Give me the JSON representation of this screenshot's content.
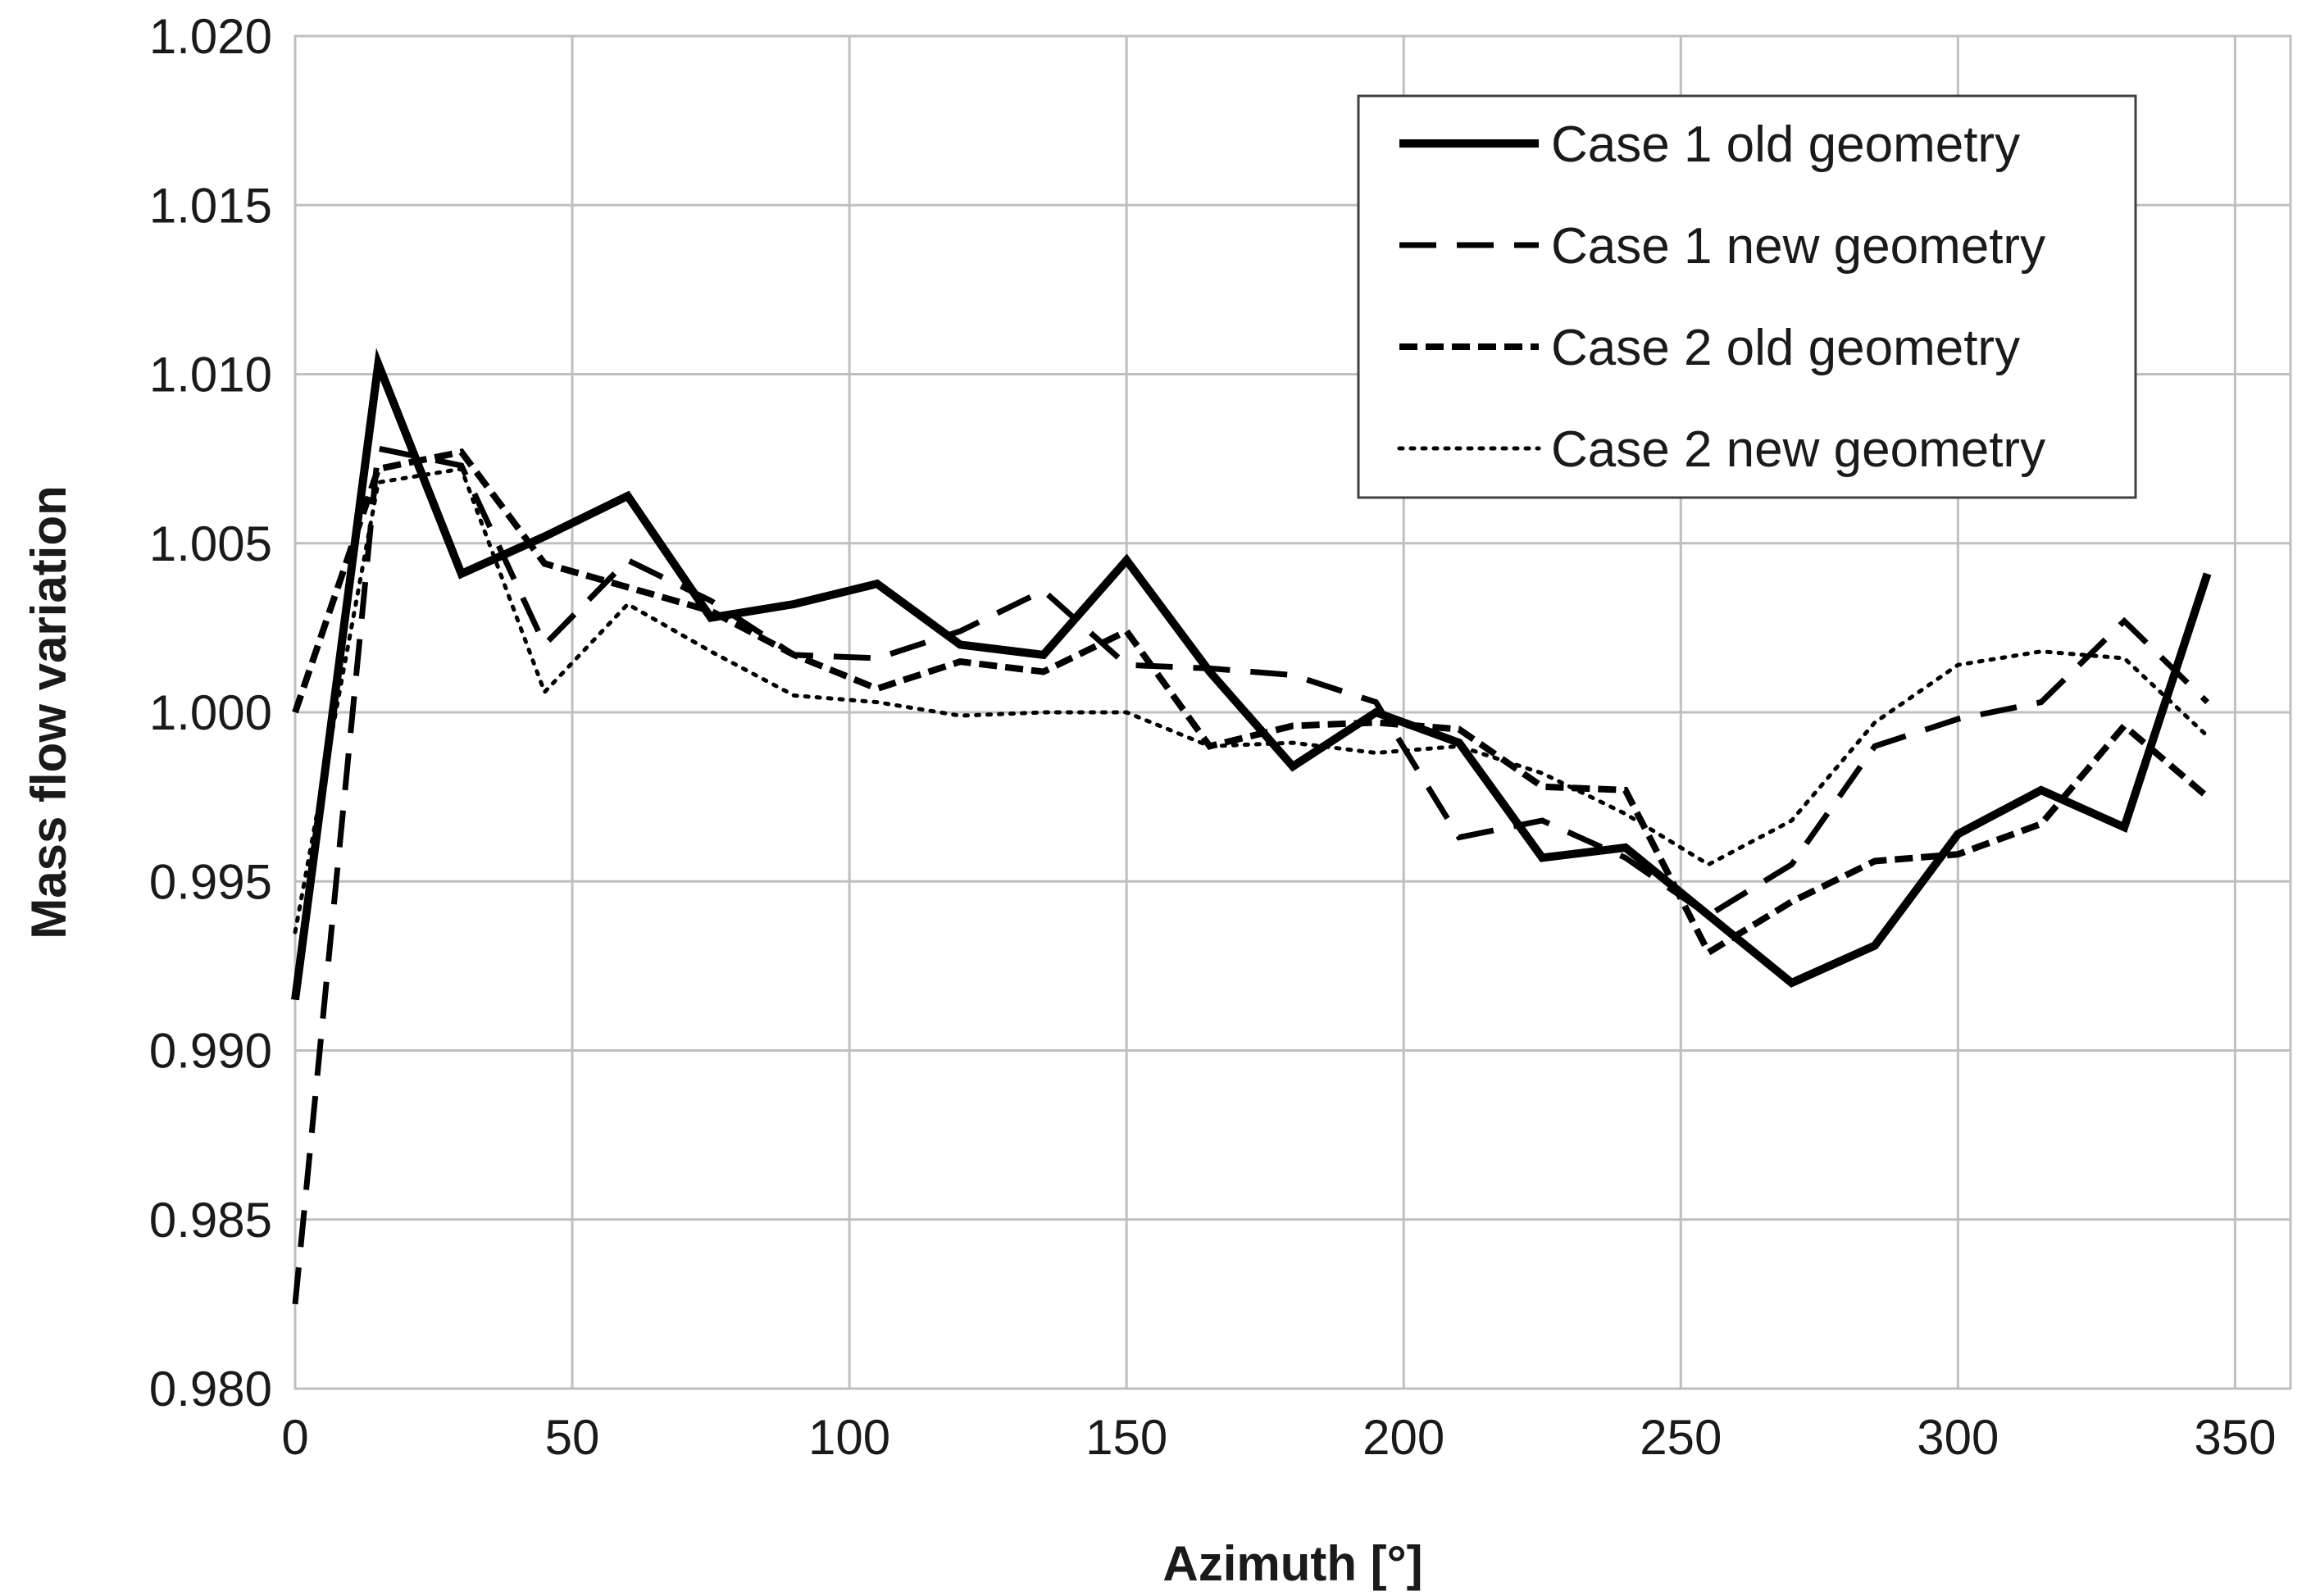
{
  "chart_data": {
    "type": "line",
    "title": "",
    "xlabel": "Azimuth [°]",
    "ylabel": "Mass flow variation",
    "xlim": [
      0,
      360
    ],
    "ylim": [
      0.98,
      1.02
    ],
    "xticks": [
      0,
      50,
      100,
      150,
      200,
      250,
      300,
      350
    ],
    "xtick_labels": [
      "0",
      "50",
      "100",
      "150",
      "200",
      "250",
      "300",
      "350"
    ],
    "yticks": [
      0.98,
      0.985,
      0.99,
      0.995,
      1.0,
      1.005,
      1.01,
      1.015,
      1.02
    ],
    "ytick_labels": [
      "0.980",
      "0.985",
      "0.990",
      "0.995",
      "1.000",
      "1.005",
      "1.010",
      "1.015",
      "1.020"
    ],
    "grid": true,
    "legend_position": "top-right",
    "x": [
      0,
      15,
      30,
      45,
      60,
      75,
      90,
      105,
      120,
      135,
      150,
      165,
      180,
      195,
      210,
      225,
      240,
      255,
      270,
      285,
      300,
      315,
      330,
      345
    ],
    "series": [
      {
        "name": "Case 1 old geometry",
        "style": "solid-thick",
        "values": [
          0.9915,
          1.0103,
          1.0041,
          1.0052,
          1.0064,
          1.0028,
          1.0032,
          1.0038,
          1.002,
          1.0017,
          1.0045,
          1.0012,
          0.9984,
          1.0,
          0.9991,
          0.9957,
          0.996,
          0.994,
          0.992,
          0.9931,
          0.9964,
          0.9977,
          0.9966,
          1.0041
        ]
      },
      {
        "name": "Case 1 new geometry",
        "style": "long-dash",
        "values": [
          0.9825,
          1.0078,
          1.0073,
          1.002,
          1.0045,
          1.0033,
          1.0017,
          1.0016,
          1.0024,
          1.0036,
          1.0014,
          1.0013,
          1.0011,
          1.0003,
          0.9963,
          0.9968,
          0.9957,
          0.994,
          0.9955,
          0.999,
          0.9998,
          1.0003,
          1.0027,
          1.0003
        ]
      },
      {
        "name": "Case 2 old geometry",
        "style": "short-dash",
        "values": [
          1.0,
          1.0072,
          1.0077,
          1.0044,
          1.0037,
          1.003,
          1.0017,
          1.0007,
          1.0015,
          1.0012,
          1.0024,
          0.999,
          0.9996,
          0.9997,
          0.9995,
          0.9978,
          0.9977,
          0.9929,
          0.9944,
          0.9956,
          0.9958,
          0.9967,
          0.9996,
          0.9975
        ]
      },
      {
        "name": "Case 2 new geometry",
        "style": "dotted",
        "values": [
          0.9935,
          1.0068,
          1.0072,
          1.0006,
          1.0032,
          1.0018,
          1.0005,
          1.0003,
          0.9999,
          1.0,
          1.0,
          0.999,
          0.9991,
          0.9988,
          0.999,
          0.9982,
          0.997,
          0.9955,
          0.9968,
          0.9997,
          1.0014,
          1.0018,
          1.0016,
          0.9993
        ]
      }
    ]
  }
}
